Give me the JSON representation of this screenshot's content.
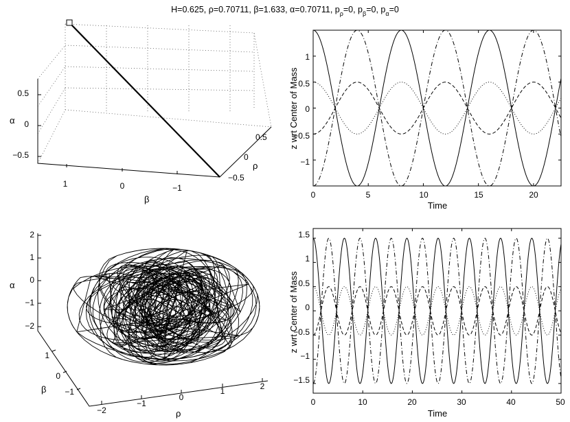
{
  "title": "H=0.625, ρ=0.70711, β=1.633, α=0.70711, p",
  "title_parts": {
    "lead": "H=0.625, ρ=0.70711, β=1.633, α=0.70711, p",
    "sub1": "ρ",
    "eq1": "=0, p",
    "sub2": "β",
    "eq2": "=0, p",
    "sub3": "α",
    "eq3": "=0"
  },
  "chart_data": [
    {
      "type": "line",
      "projection": "3d",
      "subplot": "top-left",
      "xlabel": "ρ",
      "ylabel": "β",
      "zlabel": "α",
      "x_ticks": [
        "0.5",
        "0",
        "−0.5"
      ],
      "y_ticks": [
        "1",
        "0",
        "−1"
      ],
      "z_ticks": [
        "0.5",
        "0",
        "−0.5"
      ],
      "grid": true,
      "marker": "square at start point",
      "series": [
        {
          "x": [
            0.70711,
            -0.70711
          ],
          "y": [
            1.633,
            -1.633
          ],
          "z": [
            0.70711,
            -0.70711
          ]
        }
      ]
    },
    {
      "type": "line",
      "subplot": "top-right",
      "xlabel": "Time",
      "ylabel": "z wrt Center of Mass",
      "xlim": [
        0,
        22.5
      ],
      "ylim": [
        -1.5,
        1.5
      ],
      "x_ticks": [
        "0",
        "5",
        "10",
        "15",
        "20"
      ],
      "y_ticks": [
        "−1",
        "−0.5",
        "0",
        "0.5",
        "1"
      ],
      "period": 8,
      "series": [
        {
          "style": "solid",
          "amplitude": 1.5,
          "phase": 0
        },
        {
          "style": "dash-dot",
          "amplitude": -1.5,
          "phase": 0
        },
        {
          "style": "dashed",
          "amplitude": -0.5,
          "phase": 0
        },
        {
          "style": "dotted",
          "amplitude": 0.5,
          "phase": 0
        }
      ]
    },
    {
      "type": "line",
      "projection": "3d",
      "subplot": "bottom-left",
      "xlabel": "ρ",
      "ylabel": "β",
      "zlabel": "α",
      "xlim": [
        -2,
        2
      ],
      "ylim": [
        -2,
        2
      ],
      "zlim": [
        -2,
        2
      ],
      "x_ticks": [
        "−2",
        "−1",
        "0",
        "1",
        "2"
      ],
      "y_ticks": [
        "1",
        "0",
        "−1"
      ],
      "z_ticks": [
        "2",
        "1",
        "0",
        "−1",
        "−2"
      ],
      "description": "chaotic tangled trajectory filling an ellipsoidal region"
    },
    {
      "type": "line",
      "subplot": "bottom-right",
      "xlabel": "Time",
      "ylabel": "z wrt Center of Mass",
      "xlim": [
        0,
        50
      ],
      "ylim": [
        -1.7,
        1.7
      ],
      "x_ticks": [
        "0",
        "10",
        "20",
        "30",
        "40",
        "50"
      ],
      "y_ticks": [
        "−1.5",
        "−1",
        "−0.5",
        "0",
        "0.5",
        "1",
        "1.5"
      ],
      "period": 6.3,
      "series": [
        {
          "style": "solid",
          "amplitude": 1.5,
          "phase": 0
        },
        {
          "style": "dash-dot",
          "amplitude": -1.5,
          "phase": 0
        },
        {
          "style": "dashed",
          "amplitude": -0.5,
          "phase": 0
        },
        {
          "style": "dotted",
          "amplitude": 0.5,
          "phase": 0
        }
      ]
    }
  ]
}
